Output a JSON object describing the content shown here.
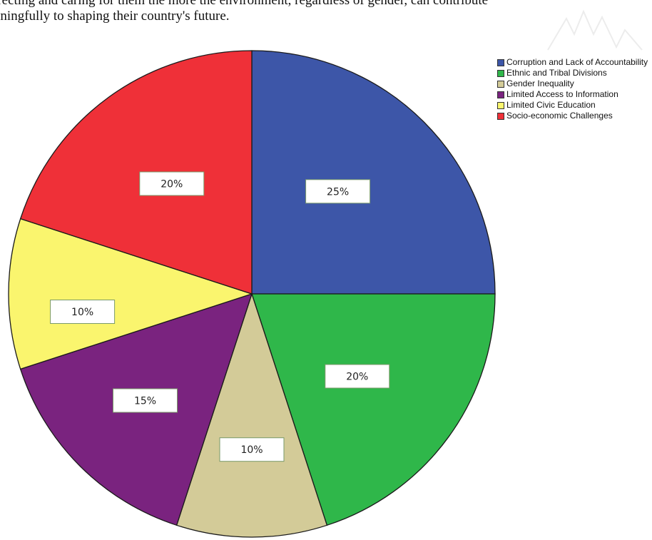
{
  "header": {
    "line1": "rrecting and caring for them the more the environment, regardless of gender, can contribute",
    "line2": "aningfully to shaping their country's future."
  },
  "chart_data": {
    "type": "pie",
    "title": "",
    "series": [
      {
        "name": "Corruption and Lack of Accountability",
        "value": 25,
        "label": "25%",
        "color": "#3d56a8"
      },
      {
        "name": "Ethnic and Tribal Divisions",
        "value": 20,
        "label": "20%",
        "color": "#2fb74a"
      },
      {
        "name": "Gender Inequality",
        "value": 10,
        "label": "10%",
        "color": "#d3cb98"
      },
      {
        "name": "Limited Access to Information",
        "value": 15,
        "label": "15%",
        "color": "#7a237f"
      },
      {
        "name": "Limited Civic Education",
        "value": 10,
        "label": "10%",
        "color": "#faf56e"
      },
      {
        "name": "Socio-economic Challenges",
        "value": 20,
        "label": "20%",
        "color": "#ef3038"
      }
    ],
    "legend_position": "top-right"
  },
  "legend": {
    "items": [
      {
        "label": "Corruption and Lack of Accountability",
        "color": "#3d56a8"
      },
      {
        "label": "Ethnic and Tribal Divisions",
        "color": "#2fb74a"
      },
      {
        "label": "Gender Inequality",
        "color": "#d3cb98"
      },
      {
        "label": "Limited Access to Information",
        "color": "#7a237f"
      },
      {
        "label": "Limited Civic Education",
        "color": "#faf56e"
      },
      {
        "label": "Socio-economic Challenges",
        "color": "#ef3038"
      }
    ]
  }
}
